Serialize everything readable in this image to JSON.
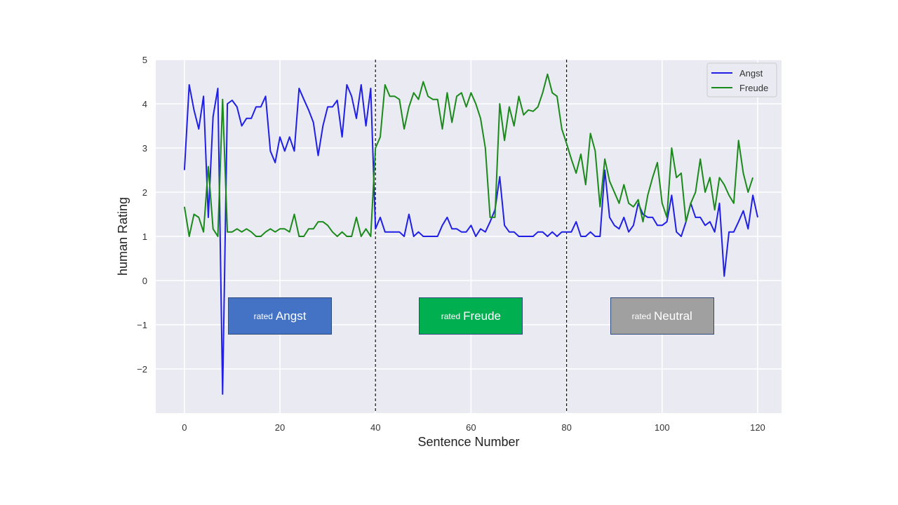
{
  "chart_data": {
    "type": "line",
    "title": "",
    "xlabel": "Sentence Number",
    "ylabel": "human Rating",
    "xlim": [
      -6,
      125
    ],
    "ylim": [
      -3,
      5
    ],
    "xticks": [
      0,
      20,
      40,
      60,
      80,
      100,
      120
    ],
    "yticks": [
      -2,
      -1,
      0,
      1,
      2,
      3,
      4,
      5
    ],
    "xtick_labels": [
      "0",
      "20",
      "40",
      "60",
      "80",
      "100",
      "120"
    ],
    "ytick_labels": [
      "−2",
      "−1",
      "0",
      "1",
      "2",
      "3",
      "4",
      "5"
    ],
    "grid": true,
    "legend_position": "top-right",
    "vlines": [
      40,
      80
    ],
    "series": [
      {
        "name": "Angst",
        "color": "#1f1fe6",
        "values": [
          2.5,
          4.43,
          3.86,
          3.43,
          4.17,
          1.43,
          3.71,
          4.35,
          -2.57,
          4.0,
          4.08,
          3.93,
          3.5,
          3.67,
          3.67,
          3.93,
          3.93,
          4.17,
          2.93,
          2.67,
          3.25,
          2.93,
          3.25,
          2.93,
          4.35,
          4.1,
          3.86,
          3.58,
          2.83,
          3.5,
          3.93,
          3.93,
          4.08,
          3.25,
          4.43,
          4.17,
          3.67,
          4.43,
          3.5,
          4.35,
          1.17,
          1.43,
          1.1,
          1.1,
          1.1,
          1.1,
          1.0,
          1.5,
          1.0,
          1.1,
          1.0,
          1.0,
          1.0,
          1.0,
          1.25,
          1.43,
          1.17,
          1.17,
          1.1,
          1.1,
          1.25,
          1.0,
          1.17,
          1.1,
          1.33,
          1.6,
          2.35,
          1.25,
          1.1,
          1.1,
          1.0,
          1.0,
          1.0,
          1.0,
          1.1,
          1.1,
          1.0,
          1.1,
          1.0,
          1.1,
          1.1,
          1.1,
          1.33,
          1.0,
          1.0,
          1.1,
          1.0,
          1.0,
          2.5,
          1.43,
          1.25,
          1.17,
          1.43,
          1.1,
          1.25,
          1.75,
          1.5,
          1.43,
          1.43,
          1.25,
          1.25,
          1.33,
          1.93,
          1.1,
          1.0,
          1.33,
          1.75,
          1.43,
          1.43,
          1.25,
          1.33,
          1.1,
          1.75,
          0.1,
          1.1,
          1.1,
          1.33,
          1.58,
          1.17,
          1.93,
          1.43
        ]
      },
      {
        "name": "Freude",
        "color": "#1a8a1a",
        "values": [
          1.67,
          1.0,
          1.5,
          1.43,
          1.1,
          2.58,
          1.17,
          1.0,
          4.1,
          1.1,
          1.1,
          1.17,
          1.1,
          1.17,
          1.1,
          1.0,
          1.0,
          1.1,
          1.17,
          1.1,
          1.17,
          1.17,
          1.1,
          1.5,
          1.0,
          1.0,
          1.17,
          1.17,
          1.33,
          1.33,
          1.25,
          1.1,
          1.0,
          1.1,
          1.0,
          1.0,
          1.43,
          1.0,
          1.17,
          1.0,
          3.0,
          3.25,
          4.43,
          4.17,
          4.17,
          4.1,
          3.43,
          3.93,
          4.25,
          4.1,
          4.5,
          4.17,
          4.1,
          4.1,
          3.43,
          4.25,
          3.58,
          4.17,
          4.25,
          3.93,
          4.25,
          4.0,
          3.67,
          3.0,
          1.43,
          1.43,
          4.0,
          3.17,
          3.93,
          3.5,
          4.17,
          3.75,
          3.86,
          3.83,
          3.93,
          4.25,
          4.67,
          4.25,
          4.17,
          3.43,
          3.1,
          2.75,
          2.43,
          2.86,
          2.17,
          3.33,
          2.93,
          1.67,
          2.75,
          2.25,
          2.0,
          1.75,
          2.17,
          1.75,
          1.67,
          1.83,
          1.33,
          1.93,
          2.33,
          2.67,
          1.75,
          1.43,
          3.0,
          2.33,
          2.43,
          1.33,
          1.75,
          2.0,
          2.75,
          2.0,
          2.33,
          1.6,
          2.33,
          2.17,
          1.93,
          1.75,
          3.17,
          2.43,
          2.0,
          2.33
        ]
      }
    ],
    "annotations": [
      {
        "small": "rated",
        "big": "Angst",
        "color": "#4472c4",
        "x_center": 20
      },
      {
        "small": "rated",
        "big": "Freude",
        "color": "#00b050",
        "x_center": 60
      },
      {
        "small": "rated",
        "big": "Neutral",
        "color": "#a0a0a0",
        "x_center": 100
      }
    ]
  }
}
